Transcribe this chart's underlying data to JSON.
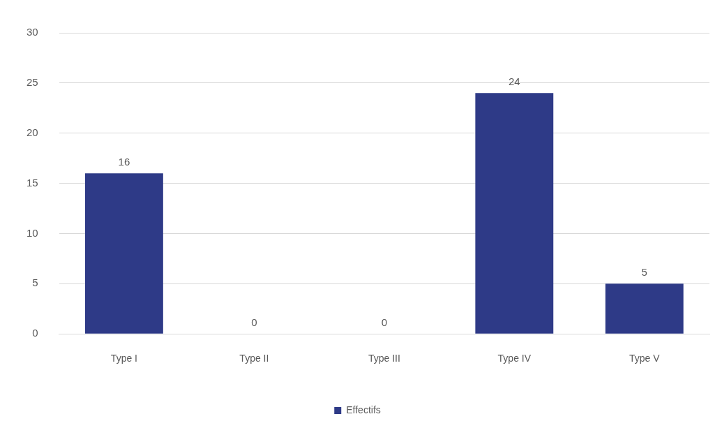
{
  "chart_data": {
    "type": "bar",
    "categories": [
      "Type I",
      "Type II",
      "Type III",
      "Type IV",
      "Type V"
    ],
    "series": [
      {
        "name": "Effectifs",
        "color": "#2e3a87",
        "values": [
          16,
          0,
          0,
          24,
          5
        ]
      }
    ],
    "ylim": [
      0,
      30
    ],
    "yticks": [
      0,
      5,
      10,
      15,
      20,
      25,
      30
    ],
    "grid": "y",
    "legend": "bottom",
    "data_labels": true
  }
}
